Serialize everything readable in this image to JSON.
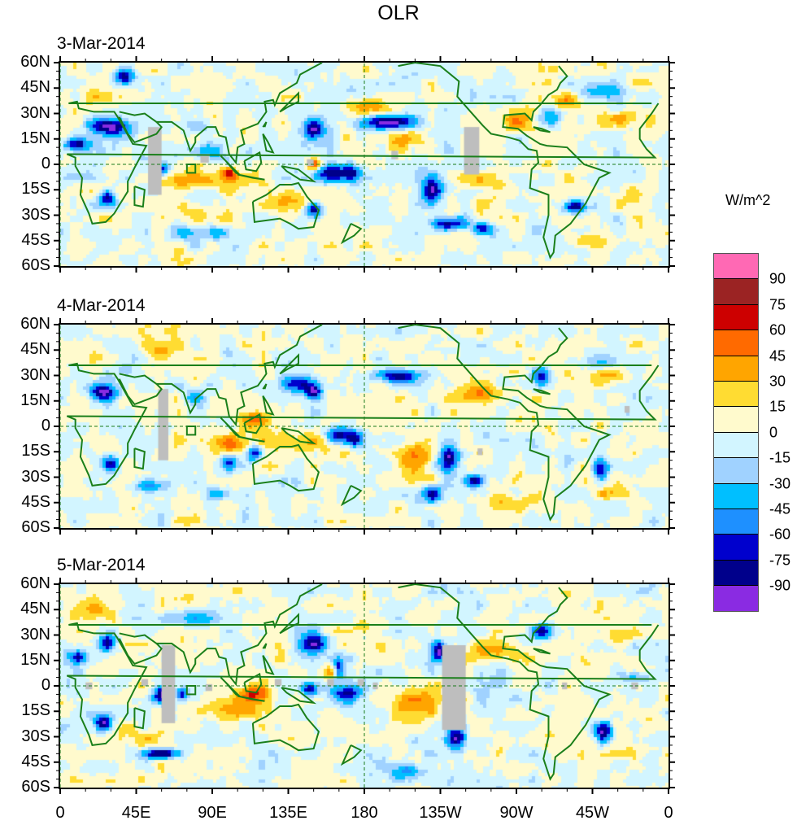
{
  "title": "OLR",
  "units": "W/m^2",
  "colorbar": {
    "levels": [
      "90",
      "75",
      "60",
      "45",
      "30",
      "15",
      "0",
      "-15",
      "-30",
      "-45",
      "-60",
      "-75",
      "-90"
    ],
    "colors": [
      "#ff69b4",
      "#9b2323",
      "#cd0000",
      "#ff6a00",
      "#ffa500",
      "#ffdc32",
      "#fffacd",
      "#d2f5ff",
      "#a0d2ff",
      "#00bfff",
      "#1e90ff",
      "#0000cd",
      "#00008b",
      "#8a2be2"
    ]
  },
  "axes": {
    "lat_labels": [
      "60N",
      "45N",
      "30N",
      "15N",
      "0",
      "15S",
      "30S",
      "45S",
      "60S"
    ],
    "lat_values": [
      60,
      45,
      30,
      15,
      0,
      -15,
      -30,
      -45,
      -60
    ],
    "lon_labels": [
      "0",
      "45E",
      "90E",
      "135E",
      "180",
      "135W",
      "90W",
      "45W",
      "0"
    ],
    "lon_values": [
      0,
      45,
      90,
      135,
      180,
      225,
      270,
      315,
      360
    ],
    "lat_range": [
      -60,
      60
    ],
    "lon_range": [
      0,
      360
    ]
  },
  "chart_data": {
    "type": "heatmap",
    "title": "OLR",
    "colorbar_label": "W/m^2",
    "contour_levels": [
      -90,
      -75,
      -60,
      -45,
      -30,
      -15,
      0,
      15,
      30,
      45,
      60,
      75,
      90
    ],
    "xlabel": "",
    "ylabel": "",
    "xlim": [
      0,
      360
    ],
    "ylim": [
      -60,
      60
    ],
    "xticks": [
      "0",
      "45E",
      "90E",
      "135E",
      "180",
      "135W",
      "90W",
      "45W",
      "0"
    ],
    "yticks": [
      "60N",
      "45N",
      "30N",
      "15N",
      "0",
      "15S",
      "30S",
      "45S",
      "60S"
    ],
    "panels": [
      {
        "date": "3-Mar-2014",
        "anomalies": [
          [
            30,
            22,
            -95,
            12,
            5
          ],
          [
            10,
            12,
            -80,
            8,
            4
          ],
          [
            38,
            52,
            -80,
            6,
            4
          ],
          [
            28,
            -20,
            -90,
            5,
            5
          ],
          [
            60,
            -3,
            -75,
            5,
            4
          ],
          [
            90,
            8,
            -45,
            8,
            6
          ],
          [
            80,
            22,
            -40,
            8,
            5
          ],
          [
            150,
            20,
            -95,
            6,
            6
          ],
          [
            160,
            -5,
            -80,
            8,
            5
          ],
          [
            172,
            -5,
            -85,
            6,
            5
          ],
          [
            150,
            -27,
            -85,
            5,
            4
          ],
          [
            195,
            25,
            -90,
            14,
            4
          ],
          [
            220,
            -15,
            -80,
            6,
            8
          ],
          [
            230,
            -35,
            -90,
            10,
            4
          ],
          [
            250,
            -38,
            -80,
            6,
            4
          ],
          [
            305,
            -25,
            -95,
            7,
            4
          ],
          [
            290,
            28,
            -40,
            8,
            5
          ],
          [
            320,
            42,
            -45,
            12,
            5
          ],
          [
            75,
            -40,
            -40,
            10,
            5
          ],
          [
            95,
            -40,
            -40,
            8,
            4
          ],
          [
            100,
            -5,
            65,
            5,
            4
          ],
          [
            85,
            -10,
            35,
            25,
            6
          ],
          [
            135,
            -20,
            35,
            10,
            7
          ],
          [
            150,
            0,
            55,
            4,
            4
          ],
          [
            270,
            25,
            40,
            15,
            5
          ],
          [
            300,
            38,
            45,
            10,
            5
          ],
          [
            335,
            28,
            35,
            12,
            5
          ],
          [
            200,
            15,
            30,
            15,
            6
          ],
          [
            180,
            35,
            35,
            12,
            5
          ],
          [
            90,
            -30,
            25,
            15,
            8
          ],
          [
            310,
            -45,
            30,
            10,
            4
          ],
          [
            20,
            40,
            20,
            10,
            5
          ],
          [
            250,
            -10,
            20,
            15,
            6
          ],
          [
            340,
            -20,
            20,
            10,
            8
          ]
        ],
        "missing": [
          [
            60,
            22,
            52,
            -18
          ],
          [
            83,
            5,
            88,
            1
          ],
          [
            146,
            3,
            150,
            -1
          ],
          [
            196,
            8,
            200,
            3
          ],
          [
            239,
            22,
            248,
            -6
          ]
        ]
      },
      {
        "date": "4-Mar-2014",
        "anomalies": [
          [
            25,
            20,
            -90,
            8,
            5
          ],
          [
            30,
            -22,
            -85,
            5,
            5
          ],
          [
            140,
            25,
            -80,
            8,
            5
          ],
          [
            150,
            20,
            -95,
            5,
            5
          ],
          [
            165,
            -5,
            -80,
            8,
            5
          ],
          [
            175,
            -8,
            -75,
            5,
            5
          ],
          [
            100,
            -20,
            -60,
            5,
            5
          ],
          [
            115,
            -15,
            -75,
            4,
            5
          ],
          [
            200,
            30,
            -95,
            14,
            4
          ],
          [
            230,
            -20,
            -90,
            6,
            8
          ],
          [
            245,
            -32,
            -95,
            6,
            4
          ],
          [
            220,
            -40,
            -80,
            5,
            5
          ],
          [
            285,
            30,
            -75,
            5,
            5
          ],
          [
            320,
            -25,
            -85,
            5,
            6
          ],
          [
            320,
            38,
            -45,
            12,
            5
          ],
          [
            55,
            -35,
            -50,
            12,
            4
          ],
          [
            80,
            18,
            -40,
            6,
            5
          ],
          [
            95,
            -40,
            -40,
            8,
            4
          ],
          [
            115,
            5,
            60,
            8,
            4
          ],
          [
            100,
            -10,
            45,
            20,
            6
          ],
          [
            145,
            -10,
            30,
            20,
            8
          ],
          [
            210,
            -20,
            40,
            10,
            10
          ],
          [
            250,
            20,
            35,
            20,
            6
          ],
          [
            325,
            30,
            35,
            12,
            5
          ],
          [
            330,
            -40,
            35,
            12,
            4
          ],
          [
            270,
            -45,
            25,
            20,
            5
          ],
          [
            20,
            40,
            25,
            12,
            5
          ],
          [
            60,
            45,
            20,
            10,
            5
          ]
        ],
        "missing": [
          [
            58,
            22,
            64,
            -20
          ],
          [
            334,
            12,
            337,
            8
          ],
          [
            247,
            -13,
            250,
            -17
          ]
        ]
      },
      {
        "date": "5-Mar-2014",
        "anomalies": [
          [
            10,
            17,
            -85,
            5,
            4
          ],
          [
            28,
            25,
            -75,
            5,
            5
          ],
          [
            25,
            -22,
            -90,
            5,
            5
          ],
          [
            60,
            -5,
            -90,
            5,
            5
          ],
          [
            72,
            -5,
            -80,
            4,
            4
          ],
          [
            60,
            -40,
            -95,
            12,
            3
          ],
          [
            150,
            25,
            -85,
            8,
            6
          ],
          [
            165,
            10,
            -80,
            3,
            6
          ],
          [
            170,
            -5,
            -90,
            8,
            6
          ],
          [
            148,
            -2,
            -75,
            5,
            4
          ],
          [
            225,
            20,
            -90,
            5,
            6
          ],
          [
            235,
            -30,
            -90,
            6,
            8
          ],
          [
            285,
            32,
            -75,
            6,
            4
          ],
          [
            322,
            -28,
            -90,
            5,
            6
          ],
          [
            205,
            -50,
            -60,
            10,
            5
          ],
          [
            80,
            40,
            -40,
            12,
            5
          ],
          [
            340,
            5,
            -40,
            8,
            3
          ],
          [
            115,
            -5,
            55,
            10,
            6
          ],
          [
            100,
            -15,
            45,
            18,
            5
          ],
          [
            160,
            8,
            40,
            6,
            4
          ],
          [
            210,
            -10,
            40,
            12,
            10
          ],
          [
            255,
            20,
            35,
            20,
            6
          ],
          [
            330,
            30,
            35,
            12,
            5
          ],
          [
            330,
            -40,
            35,
            12,
            4
          ],
          [
            20,
            45,
            25,
            12,
            5
          ],
          [
            45,
            -30,
            25,
            15,
            6
          ],
          [
            180,
            35,
            20,
            15,
            5
          ]
        ],
        "missing": [
          [
            60,
            24,
            68,
            -22
          ],
          [
            86,
            1,
            90,
            -3
          ],
          [
            127,
            4,
            131,
            0
          ],
          [
            158,
            4,
            162,
            0
          ],
          [
            185,
            2,
            188,
            -2
          ],
          [
            226,
            24,
            240,
            -26
          ],
          [
            297,
            2,
            300,
            -2
          ],
          [
            338,
            2,
            342,
            -2
          ],
          [
            15,
            2,
            19,
            -2
          ],
          [
            48,
            4,
            52,
            0
          ],
          [
            176,
            4,
            180,
            0
          ]
        ]
      }
    ]
  }
}
